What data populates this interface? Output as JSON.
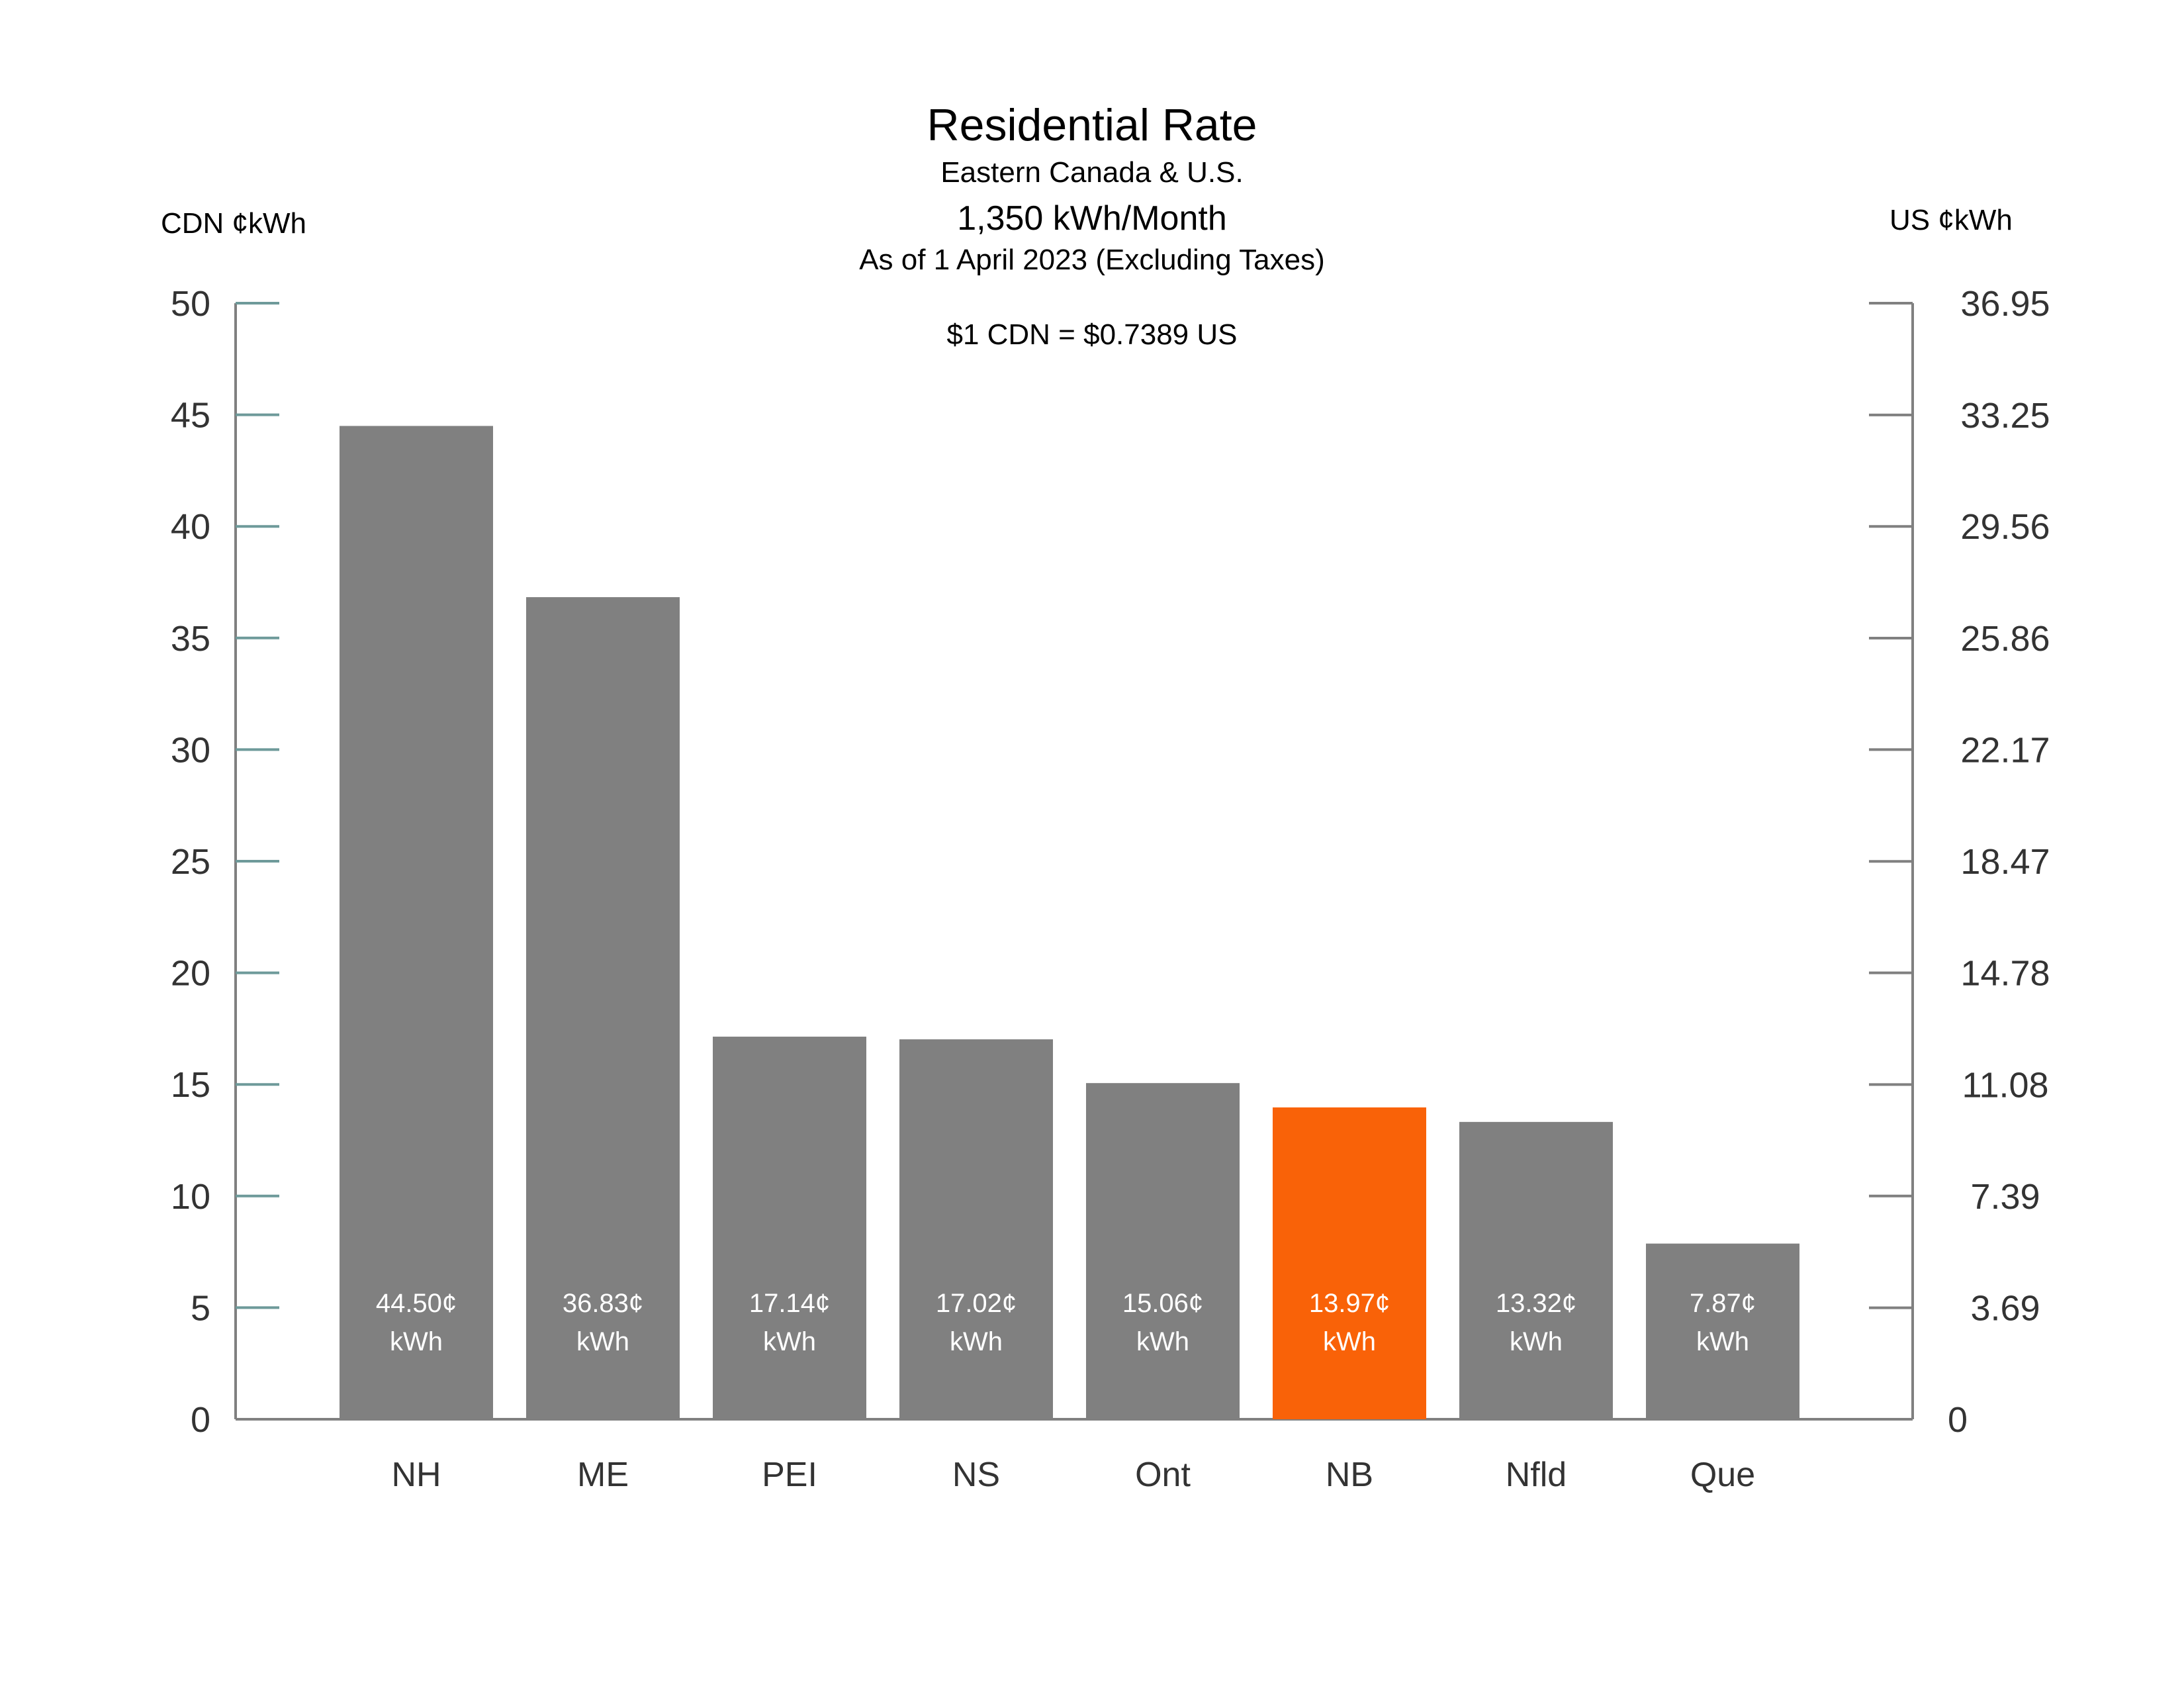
{
  "chart_data": {
    "type": "bar",
    "title": "Residential Rate",
    "subtitle_lines": [
      "Eastern Canada & U.S.",
      "1,350 kWh/Month",
      "As of 1 April 2023 (Excluding Taxes)"
    ],
    "exchange_note": "$1 CDN = $0.7389 US",
    "left_axis": {
      "label": "CDN ¢kWh",
      "ylim": [
        0,
        50
      ],
      "ticks": [
        "0",
        "5",
        "10",
        "15",
        "20",
        "25",
        "30",
        "35",
        "40",
        "45",
        "50"
      ]
    },
    "right_axis": {
      "label": "US ¢kWh",
      "ylim": [
        0,
        36.95
      ],
      "ticks": [
        "0",
        "3.69",
        "7.39",
        "11.08",
        "14.78",
        "18.47",
        "22.17",
        "25.86",
        "29.56",
        "33.25",
        "36.95"
      ]
    },
    "categories": [
      "NH",
      "ME",
      "PEI",
      "NS",
      "Ont",
      "NB",
      "Nfld",
      "Que"
    ],
    "values": [
      44.5,
      36.83,
      17.14,
      17.02,
      15.06,
      13.97,
      13.32,
      7.87
    ],
    "value_labels": [
      "44.50¢",
      "36.83¢",
      "17.14¢",
      "17.02¢",
      "15.06¢",
      "13.97¢",
      "13.32¢",
      "7.87¢"
    ],
    "value_unit_label": "kWh",
    "highlight_category": "NB",
    "colors": {
      "bar": "#808080",
      "highlight": "#f96208",
      "axis": "#808080",
      "left_tick": "#6e9a9a"
    },
    "grid": false,
    "legend": "none"
  }
}
